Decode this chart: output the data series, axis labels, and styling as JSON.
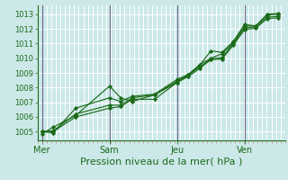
{
  "xlabel": "Pression niveau de la mer( hPa )",
  "bg_color": "#cce8e8",
  "grid_color": "#ffffff",
  "line_color": "#1a6b1a",
  "marker_color": "#1a6b1a",
  "vline_color": "#666688",
  "tick_color": "#cc8888",
  "ylim": [
    1004.4,
    1013.6
  ],
  "yticks": [
    1005,
    1006,
    1007,
    1008,
    1009,
    1010,
    1011,
    1012,
    1013
  ],
  "day_labels": [
    "Mer",
    "Sam",
    "Jeu",
    "Ven"
  ],
  "day_positions": [
    0.0,
    3.0,
    6.0,
    9.0
  ],
  "xlim": [
    -0.2,
    10.8
  ],
  "x_positions": [
    0.0,
    0.5,
    1.5,
    3.0,
    3.5,
    4.0,
    5.0,
    6.0,
    6.5,
    7.0,
    7.5,
    8.0,
    8.5,
    9.0,
    9.5,
    10.0,
    10.5
  ],
  "series": [
    [
      1004.85,
      1005.3,
      1006.1,
      1008.1,
      1007.3,
      1007.05,
      1007.5,
      1008.35,
      1008.85,
      1009.5,
      1010.5,
      1010.4,
      1011.15,
      1012.3,
      1012.2,
      1013.0,
      1013.05
    ],
    [
      1005.0,
      1004.92,
      1006.6,
      1007.3,
      1007.05,
      1007.4,
      1007.55,
      1008.55,
      1008.9,
      1009.55,
      1010.0,
      1010.3,
      1011.05,
      1012.2,
      1012.2,
      1012.95,
      1013.0
    ],
    [
      1005.0,
      1005.05,
      1006.2,
      1006.8,
      1006.8,
      1007.3,
      1007.5,
      1008.45,
      1008.85,
      1009.4,
      1009.95,
      1010.05,
      1011.0,
      1012.05,
      1012.15,
      1012.8,
      1012.85
    ],
    [
      1005.0,
      1005.0,
      1006.0,
      1006.6,
      1006.7,
      1007.2,
      1007.2,
      1008.35,
      1008.75,
      1009.3,
      1009.9,
      1009.95,
      1010.9,
      1011.95,
      1012.05,
      1012.7,
      1012.75
    ]
  ],
  "xlabel_fontsize": 8,
  "ytick_fontsize": 6,
  "xtick_fontsize": 7
}
